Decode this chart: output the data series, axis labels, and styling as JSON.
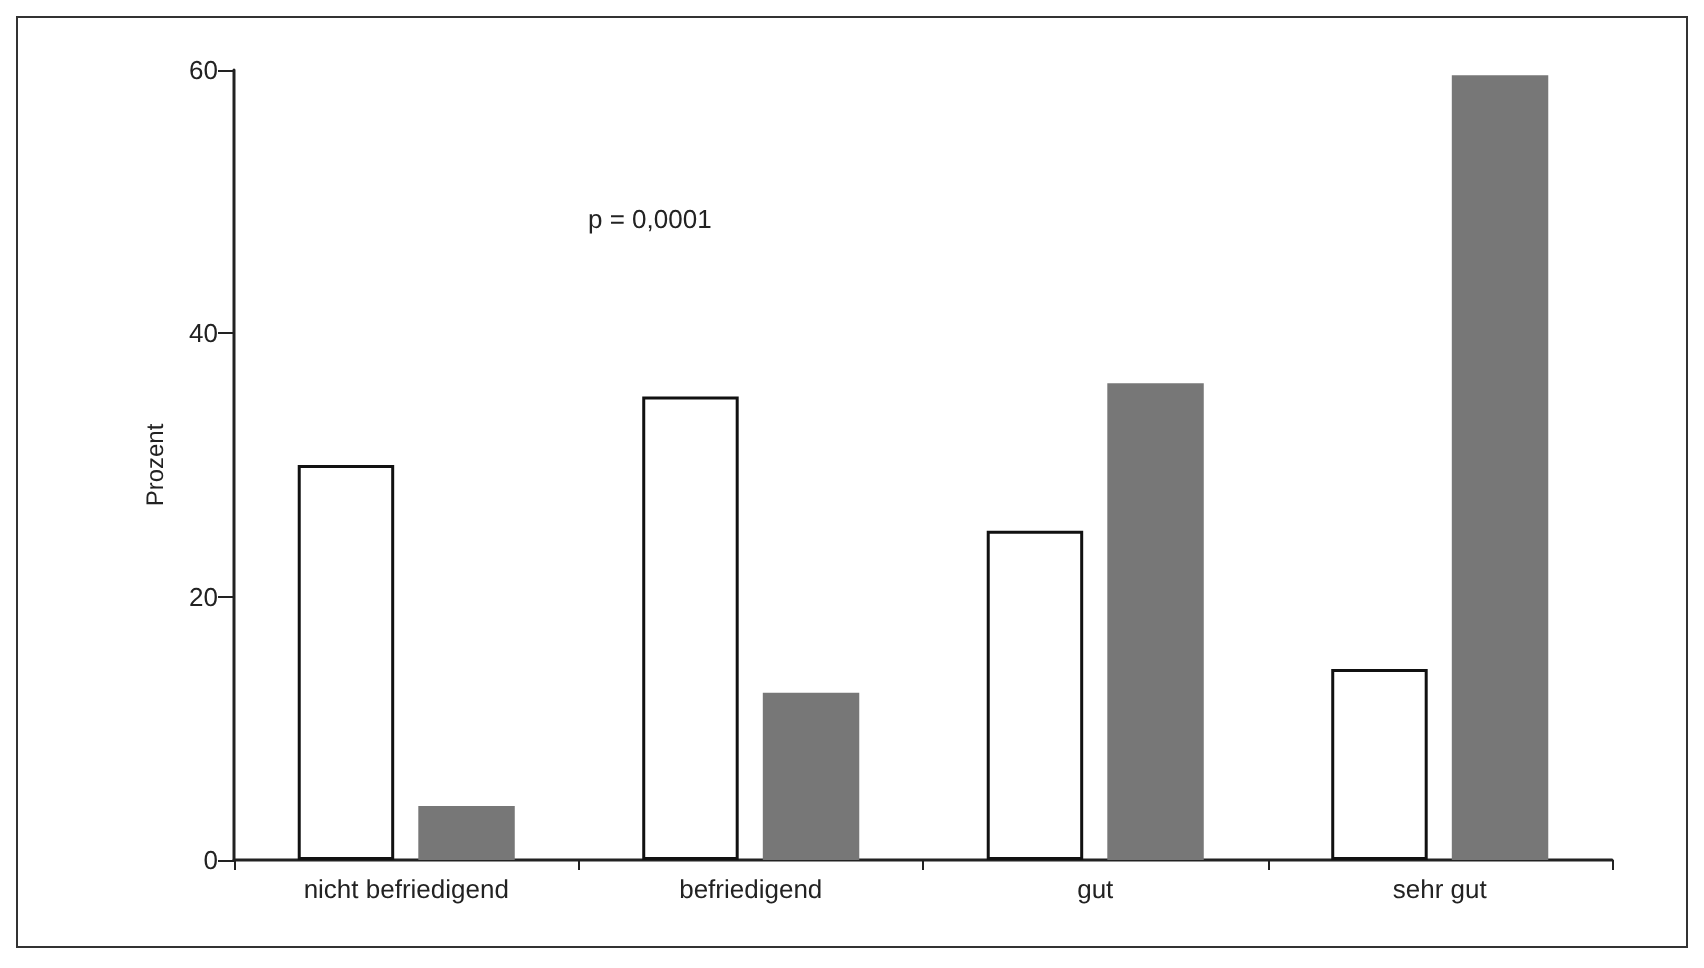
{
  "chart_data": {
    "type": "bar",
    "ylabel": "Prozent",
    "categories": [
      "nicht befriedigend",
      "befriedigend",
      "gut",
      "sehr gut"
    ],
    "series": [
      {
        "color": "#ffffff",
        "values": [
          30.0,
          35.2,
          25.0,
          14.5
        ]
      },
      {
        "color": "#777777",
        "values": [
          4.1,
          12.7,
          36.2,
          59.6
        ]
      }
    ],
    "ylim": [
      0,
      60
    ],
    "yticks": [
      0,
      20,
      40,
      60
    ],
    "grid": false,
    "annotations": [
      "p = 0,0001"
    ]
  }
}
